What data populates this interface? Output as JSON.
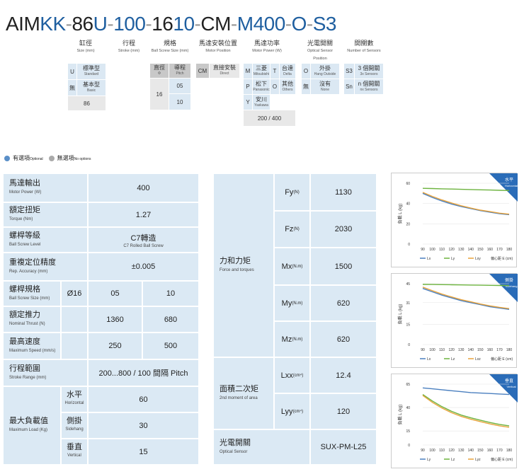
{
  "model_code": {
    "parts": [
      {
        "t": "AIM",
        "c": "k"
      },
      {
        "t": "KK",
        "c": "b"
      },
      {
        "t": "-",
        "c": "sep"
      },
      {
        "t": "86",
        "c": "k"
      },
      {
        "t": "U",
        "c": "b"
      },
      {
        "t": "-",
        "c": "sep"
      },
      {
        "t": "100",
        "c": "b"
      },
      {
        "t": "-",
        "c": "sep"
      },
      {
        "t": "16",
        "c": "k"
      },
      {
        "t": "10",
        "c": "b"
      },
      {
        "t": "-",
        "c": "sep"
      },
      {
        "t": "CM",
        "c": "k"
      },
      {
        "t": "-",
        "c": "sep"
      },
      {
        "t": "M400",
        "c": "b"
      },
      {
        "t": "-",
        "c": "sep"
      },
      {
        "t": "O",
        "c": "b"
      },
      {
        "t": "-",
        "c": "sep"
      },
      {
        "t": "S3",
        "c": "b"
      }
    ]
  },
  "code_labels": {
    "size": {
      "zh": "缸徑",
      "en": "Size (mm)"
    },
    "stroke": {
      "zh": "行程",
      "en": "Stroke (mm)"
    },
    "screw": {
      "zh": "規格",
      "en": "Ball Screw Size (mm)"
    },
    "motor_pos": {
      "zh": "馬達安裝位置",
      "en": "Motor Position"
    },
    "motor_power": {
      "zh": "馬達功率",
      "en": "Motor Power (W)"
    },
    "sensor": {
      "zh": "光電開關",
      "en": "Optical Sensor",
      "en2": "Position"
    },
    "num_sensors": {
      "zh": "開關數",
      "en": "Number of Sensors"
    }
  },
  "options": {
    "size": {
      "U": "U",
      "U_zh": "標準型",
      "U_en": "Standard",
      "n": "無",
      "n_zh": "基本型",
      "n_en": "Basic",
      "value": "86"
    },
    "screw": {
      "h1_zh": "直徑",
      "h1_en": "Φ",
      "h2_zh": "導程",
      "h2_en": "Pitch",
      "d": "16",
      "p1": "05",
      "p2": "10"
    },
    "motor_pos": {
      "code": "CM",
      "zh": "直接安裝",
      "en": "Direct"
    },
    "motor_power": {
      "M": "M",
      "M_zh": "三菱",
      "M_en": "Mitsubishi",
      "T": "T",
      "T_zh": "台達",
      "T_en": "Delta",
      "P": "P",
      "P_zh": "松下",
      "P_en": "Panasonic",
      "O": "O",
      "O_zh": "其他",
      "O_en": "Others",
      "Y": "Y",
      "Y_zh": "安川",
      "Y_en": "Yaskawa",
      "value": "200 / 400"
    },
    "sensor": {
      "O": "O",
      "O_zh": "外掛",
      "O_en": "Hang Outside",
      "n": "無",
      "n_zh": "沒有",
      "n_en": "None"
    },
    "num_sensors": {
      "S3": "S3",
      "S3_zh": "3 個開關",
      "S3_en": "3x Sensors",
      "Sn": "Sn",
      "Sn_zh": "n 個開關",
      "Sn_en": "nx Sensors"
    }
  },
  "legend": {
    "optional_zh": "有選項",
    "optional_en": "Optional",
    "none_zh": "無選項",
    "none_en": "No options"
  },
  "spec_left": {
    "motor_power": {
      "zh": "馬達輸出",
      "en": "Motor Power (W)",
      "v": "400"
    },
    "torque": {
      "zh": "額定扭矩",
      "en": "Torque (Nm)",
      "v": "1.27"
    },
    "screw_level": {
      "zh": "螺桿等級",
      "en": "Ball Screw Level",
      "v": "C7轉造",
      "v_en": "C7 Rolled Ball Screw"
    },
    "accuracy": {
      "zh": "重複定位精度",
      "en": "Rep. Accuracy (mm)",
      "v": "±0.005"
    },
    "screw_size": {
      "zh": "螺桿規格",
      "en": "Ball Screw Size (mm)",
      "d": "Ø16",
      "v1": "05",
      "v2": "10"
    },
    "thrust": {
      "zh": "額定推力",
      "en": "Nominal Thrust (N)",
      "v1": "1360",
      "v2": "680"
    },
    "speed": {
      "zh": "最高速度",
      "en": "Maximum Speed (mm/s)",
      "v1": "250",
      "v2": "500"
    },
    "stroke": {
      "zh": "行程範圍",
      "en": "Stroke Range (mm)",
      "v": "200...800 / 100 間隔 Pitch"
    },
    "max_load": {
      "zh": "最大負載值",
      "en": "Maximum Load (Kg)",
      "h": {
        "zh": "水平",
        "en": "Horizontal",
        "v": "60"
      },
      "s": {
        "zh": "側掛",
        "en": "Sidehang",
        "v": "30"
      },
      "v": {
        "zh": "垂直",
        "en": "Vertical",
        "v": "15"
      }
    }
  },
  "spec_right": {
    "force": {
      "zh": "力和力矩",
      "en": "Force and torques"
    },
    "fy": {
      "l": "Fy",
      "u": "(N)",
      "v": "1130"
    },
    "fz": {
      "l": "Fz",
      "u": "(N)",
      "v": "2030"
    },
    "mx": {
      "l": "Mx",
      "u": "(N.m)",
      "v": "1500"
    },
    "my": {
      "l": "My",
      "u": "(N.m)",
      "v": "620"
    },
    "mz": {
      "l": "Mz",
      "u": "(N.m)",
      "v": "620"
    },
    "moment": {
      "zh": "面積二次矩",
      "en": "2nd moment of area"
    },
    "lxx": {
      "l": "Lxx",
      "u": "(cm⁴)",
      "v": "12.4"
    },
    "lyy": {
      "l": "Lyy",
      "u": "(cm⁴)",
      "v": "120"
    },
    "sensor": {
      "zh": "光電開關",
      "en": "Optical Sensor",
      "v": "SUX-PM-L25"
    }
  },
  "chart_data": [
    {
      "type": "line",
      "badge_zh": "水平",
      "badge_en": "Horizontal",
      "ylabel": "負載 L (kg)",
      "xlabel": "偏心距 E (cm)",
      "x": [
        90,
        100,
        110,
        120,
        130,
        140,
        150,
        160,
        170,
        180
      ],
      "ylim": [
        0,
        60
      ],
      "yticks": [
        0,
        20,
        40,
        60
      ],
      "series": [
        {
          "name": "Lx",
          "color": "#4a7fbf",
          "values": [
            50,
            46,
            42.5,
            39.5,
            37,
            35,
            33,
            31.5,
            30,
            29
          ]
        },
        {
          "name": "Ly",
          "color": "#6db33f",
          "values": [
            55,
            54.8,
            54.5,
            54.3,
            54,
            53.8,
            53.5,
            53.3,
            53,
            52.8
          ]
        },
        {
          "name": "Lxy",
          "color": "#e8a33b",
          "values": [
            51,
            47,
            43.5,
            40.5,
            37.8,
            35.5,
            33.5,
            32,
            30.5,
            29.5
          ]
        }
      ],
      "legend": [
        "Lx",
        "Ly",
        "Lxy"
      ]
    },
    {
      "type": "line",
      "badge_zh": "側掛",
      "badge_en": "Sidehang",
      "ylabel": "負載 L (kg)",
      "xlabel": "偏心距 E (cm)",
      "x": [
        90,
        100,
        110,
        120,
        130,
        140,
        150,
        160,
        170,
        180
      ],
      "ylim": [
        0,
        45
      ],
      "yticks": [
        0,
        15,
        31,
        45
      ],
      "series": [
        {
          "name": "Lx",
          "color": "#4a7fbf",
          "values": [
            41.5,
            39,
            36.5,
            34.5,
            32.5,
            31,
            29.5,
            28,
            27,
            26
          ]
        },
        {
          "name": "Lz",
          "color": "#6db33f",
          "values": [
            44.5,
            44.4,
            44.3,
            44.2,
            44.1,
            44,
            43.9,
            43.8,
            43.7,
            43.6
          ]
        },
        {
          "name": "Lxz",
          "color": "#e8a33b",
          "values": [
            42.5,
            39.8,
            37.3,
            35.2,
            33.2,
            31.6,
            30,
            28.6,
            27.5,
            26.6
          ]
        }
      ],
      "legend": [
        "Lx",
        "Lz",
        "Lxz"
      ]
    },
    {
      "type": "line",
      "badge_zh": "垂直",
      "badge_en": "Vertical",
      "ylabel": "負載 L (kg)",
      "xlabel": "偏心距 E (cm)",
      "x": [
        90,
        100,
        110,
        120,
        130,
        140,
        150,
        160,
        170,
        180
      ],
      "ylim": [
        0,
        65
      ],
      "yticks": [
        0,
        15,
        40,
        65
      ],
      "series": [
        {
          "name": "Ly",
          "color": "#4a7fbf",
          "values": [
            61,
            60,
            59,
            58,
            57,
            56,
            55.5,
            55,
            54.5,
            54
          ]
        },
        {
          "name": "Lz",
          "color": "#6db33f",
          "values": [
            54,
            47,
            41,
            36,
            32,
            29,
            26.5,
            24,
            22,
            20.5
          ]
        },
        {
          "name": "Lyz",
          "color": "#e8a33b",
          "values": [
            53,
            45.5,
            39.5,
            34.5,
            30.5,
            27.5,
            25,
            22.5,
            20.5,
            19
          ]
        }
      ],
      "legend": [
        "Ly",
        "Lz",
        "Lyz"
      ]
    }
  ],
  "colors": {
    "accent": "#1f5fa0",
    "table_bg": "#dbe9f4",
    "badge": "#2a6cb8"
  }
}
